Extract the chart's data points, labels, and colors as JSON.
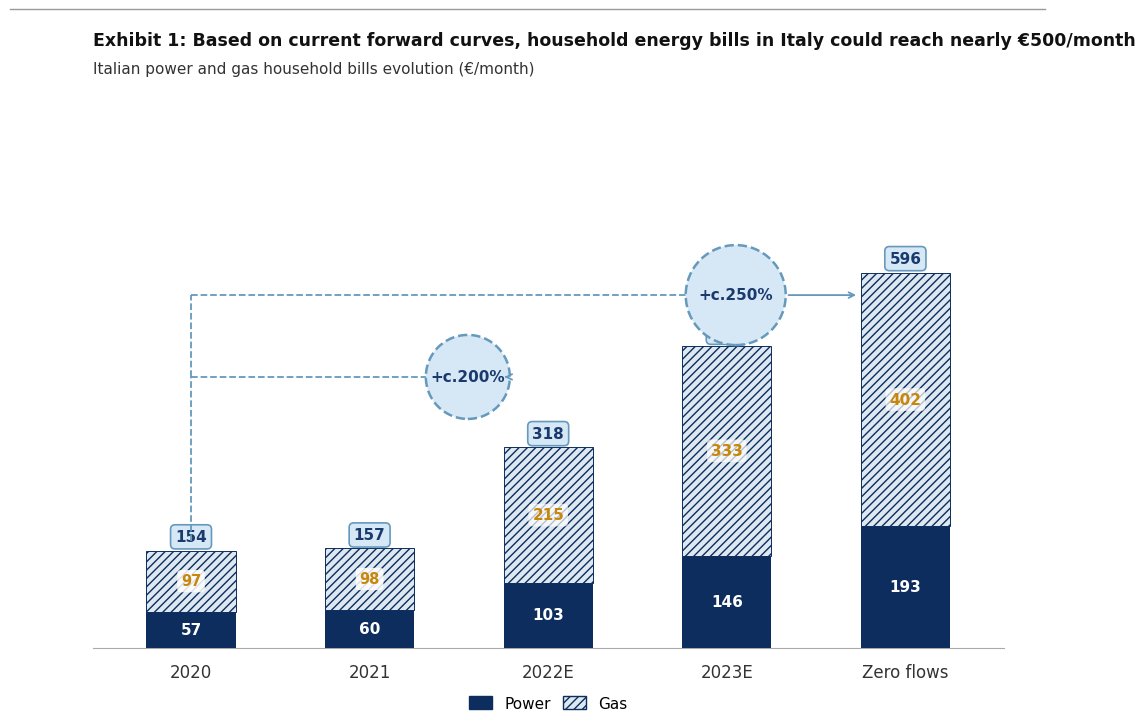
{
  "categories": [
    "2020",
    "2021",
    "2022E",
    "2023E",
    "Zero flows"
  ],
  "power_values": [
    57,
    60,
    103,
    146,
    193
  ],
  "gas_values": [
    97,
    98,
    215,
    333,
    402
  ],
  "totals": [
    154,
    157,
    318,
    479,
    596
  ],
  "title_bold": "Exhibit 1: Based on current forward curves, household energy bills in Italy could reach nearly €500/month",
  "subtitle": "Italian power and gas household bills evolution (€/month)",
  "power_color": "#0d2d5e",
  "gas_color_face": "#dde8f0",
  "gas_hatch": "////",
  "legend_power": "Power",
  "legend_gas": "Gas",
  "annotation_200": "+c.200%",
  "annotation_250": "+c.250%",
  "ylim": [
    0,
    680
  ],
  "background_color": "#ffffff",
  "circle_color": "#d6e8f5",
  "circle_edge_color": "#6699bb",
  "label_box_color": "#d6e8f5",
  "label_box_edge": "#6699bb",
  "bar_width": 0.5,
  "gas_label_color": "#c8860a",
  "top_line_color": "#aaaaaa"
}
